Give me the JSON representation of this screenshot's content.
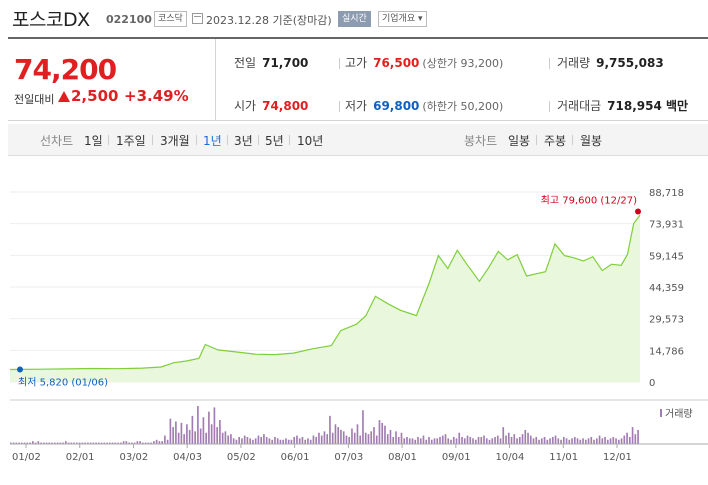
{
  "header": {
    "stock_name": "포스코DX",
    "stock_code": "022100",
    "market_badge": "코스닥",
    "date_text": "2023.12.28 기준(장마감)",
    "realtime_button": "실시간",
    "company_button": "기업개요"
  },
  "summary": {
    "current_price": "74,200",
    "change_label": "전일대비",
    "change_value": "2,500",
    "change_pct": "+3.49%",
    "stats": {
      "prev_close": {
        "label": "전일",
        "value": "71,700"
      },
      "high": {
        "label": "고가",
        "value": "76,500",
        "sub": "(상한가 93,200)"
      },
      "volume": {
        "label": "거래량",
        "value": "9,755,083"
      },
      "open": {
        "label": "시가",
        "value": "74,800"
      },
      "low": {
        "label": "저가",
        "value": "69,800",
        "sub": "(하한가 50,200)"
      },
      "amount": {
        "label": "거래대금",
        "value": "718,954 백만"
      }
    }
  },
  "tabs": {
    "line_chart_label": "선차트",
    "periods": [
      "1일",
      "1주일",
      "3개월",
      "1년",
      "3년",
      "5년",
      "10년"
    ],
    "active_period": "1년",
    "candle_chart_label": "봉차트",
    "candles": [
      "일봉",
      "주봉",
      "월봉"
    ]
  },
  "chart_data": {
    "type": "area",
    "y_ticks": [
      "88,718",
      "73,931",
      "59,145",
      "44,359",
      "29,573",
      "14,786",
      "0"
    ],
    "ylim": [
      0,
      88718
    ],
    "x_ticks": [
      "01/02",
      "02/01",
      "03/02",
      "04/03",
      "05/02",
      "06/01",
      "07/03",
      "08/01",
      "09/01",
      "10/04",
      "11/01",
      "12/01"
    ],
    "grid": true,
    "high_annotation": "최고 79,600 (12/27)",
    "low_annotation": "최저 5,820 (01/06)",
    "volume_legend": "거래량",
    "line_color": "#7fcf3a",
    "fill_color": "#e9f7dc",
    "high_marker_color": "#d0021b",
    "low_marker_color": "#1060c0",
    "volume_color": "#a07cb0",
    "series": [
      {
        "x": 0,
        "y": 5820
      },
      {
        "x": 0.02,
        "y": 5900
      },
      {
        "x": 0.05,
        "y": 6000
      },
      {
        "x": 0.09,
        "y": 6100
      },
      {
        "x": 0.13,
        "y": 6300
      },
      {
        "x": 0.17,
        "y": 6200
      },
      {
        "x": 0.21,
        "y": 6500
      },
      {
        "x": 0.24,
        "y": 7000
      },
      {
        "x": 0.26,
        "y": 9000
      },
      {
        "x": 0.28,
        "y": 9800
      },
      {
        "x": 0.3,
        "y": 11000
      },
      {
        "x": 0.31,
        "y": 17500
      },
      {
        "x": 0.33,
        "y": 15000
      },
      {
        "x": 0.36,
        "y": 14000
      },
      {
        "x": 0.39,
        "y": 13000
      },
      {
        "x": 0.42,
        "y": 12800
      },
      {
        "x": 0.45,
        "y": 13500
      },
      {
        "x": 0.48,
        "y": 15500
      },
      {
        "x": 0.51,
        "y": 17000
      },
      {
        "x": 0.525,
        "y": 24000
      },
      {
        "x": 0.55,
        "y": 27000
      },
      {
        "x": 0.565,
        "y": 31000
      },
      {
        "x": 0.58,
        "y": 40000
      },
      {
        "x": 0.6,
        "y": 36500
      },
      {
        "x": 0.62,
        "y": 33500
      },
      {
        "x": 0.635,
        "y": 32000
      },
      {
        "x": 0.645,
        "y": 31000
      },
      {
        "x": 0.655,
        "y": 38500
      },
      {
        "x": 0.665,
        "y": 46000
      },
      {
        "x": 0.68,
        "y": 59000
      },
      {
        "x": 0.695,
        "y": 53000
      },
      {
        "x": 0.71,
        "y": 61500
      },
      {
        "x": 0.725,
        "y": 55000
      },
      {
        "x": 0.745,
        "y": 47000
      },
      {
        "x": 0.76,
        "y": 53500
      },
      {
        "x": 0.775,
        "y": 61000
      },
      {
        "x": 0.79,
        "y": 57000
      },
      {
        "x": 0.805,
        "y": 59500
      },
      {
        "x": 0.82,
        "y": 49500
      },
      {
        "x": 0.835,
        "y": 50500
      },
      {
        "x": 0.85,
        "y": 51500
      },
      {
        "x": 0.865,
        "y": 64500
      },
      {
        "x": 0.88,
        "y": 59000
      },
      {
        "x": 0.895,
        "y": 58000
      },
      {
        "x": 0.91,
        "y": 56500
      },
      {
        "x": 0.925,
        "y": 58500
      },
      {
        "x": 0.94,
        "y": 52000
      },
      {
        "x": 0.955,
        "y": 55000
      },
      {
        "x": 0.97,
        "y": 54500
      },
      {
        "x": 0.98,
        "y": 59500
      },
      {
        "x": 0.99,
        "y": 74000
      },
      {
        "x": 1.0,
        "y": 78000
      }
    ],
    "volume": [
      1,
      1,
      1,
      1,
      1,
      1,
      1,
      1,
      2,
      1,
      2,
      1,
      1,
      1,
      1,
      1,
      1,
      1,
      1,
      1,
      2,
      1,
      1,
      1,
      1,
      1,
      1,
      1,
      1,
      1,
      1,
      1,
      1,
      1,
      1,
      1,
      1,
      1,
      1,
      1,
      1,
      2,
      2,
      1,
      1,
      1,
      2,
      2,
      1,
      1,
      1,
      1,
      2,
      3,
      2,
      2,
      6,
      3,
      18,
      12,
      16,
      8,
      15,
      7,
      14,
      10,
      20,
      9,
      27,
      11,
      19,
      8,
      23,
      14,
      26,
      12,
      17,
      8,
      9,
      6,
      7,
      4,
      3,
      5,
      4,
      6,
      5,
      4,
      3,
      4,
      6,
      5,
      7,
      5,
      4,
      3,
      5,
      4,
      3,
      3,
      4,
      3,
      3,
      5,
      6,
      4,
      5,
      3,
      4,
      3,
      6,
      5,
      8,
      6,
      9,
      7,
      20,
      8,
      14,
      12,
      10,
      9,
      6,
      5,
      11,
      8,
      14,
      6,
      24,
      8,
      7,
      9,
      12,
      6,
      17,
      15,
      13,
      7,
      10,
      5,
      9,
      5,
      8,
      4,
      5,
      4,
      4,
      3,
      5,
      4,
      6,
      3,
      5,
      3,
      4,
      4,
      5,
      6,
      7,
      4,
      3,
      5,
      4,
      8,
      5,
      4,
      6,
      5,
      4,
      3,
      5,
      5,
      6,
      4,
      3,
      4,
      5,
      6,
      4,
      12,
      6,
      8,
      5,
      7,
      4,
      5,
      7,
      10,
      8,
      6,
      4,
      5,
      3,
      4,
      5,
      3,
      4,
      5,
      6,
      4,
      3,
      5,
      4,
      3,
      4,
      5,
      4,
      3,
      4,
      3,
      4,
      5,
      3,
      4,
      6,
      4,
      5,
      3,
      4,
      5,
      4,
      3,
      4,
      6,
      8,
      5,
      12,
      7,
      10
    ]
  }
}
